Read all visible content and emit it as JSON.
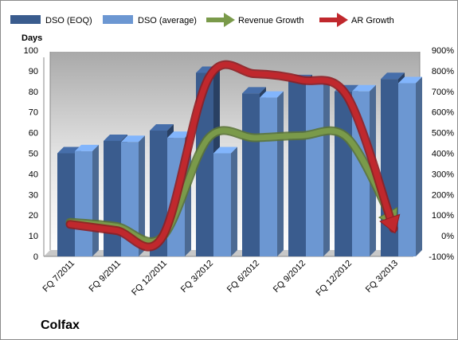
{
  "chart_data": {
    "type": "bar",
    "title": "Colfax",
    "ylabel": "Days",
    "categories": [
      "FQ 7/2011",
      "FQ 9/2011",
      "FQ 12/2011",
      "FQ 3/2012",
      "FQ 6/2012",
      "FQ 9/2012",
      "FQ 12/2012",
      "FQ 3/2013"
    ],
    "ylim": [
      0,
      100
    ],
    "y_ticks": [
      "0",
      "10",
      "20",
      "30",
      "40",
      "50",
      "60",
      "70",
      "80",
      "90",
      "100"
    ],
    "y2lim": [
      -100,
      900
    ],
    "y2_ticks": [
      "-100%",
      "0%",
      "100%",
      "200%",
      "300%",
      "400%",
      "500%",
      "600%",
      "700%",
      "800%",
      "900%"
    ],
    "series": [
      {
        "name": "DSO (EOQ)",
        "type": "bar",
        "color": "#3a5c8e",
        "values": [
          50,
          56,
          61,
          89,
          79,
          85,
          80,
          86
        ]
      },
      {
        "name": "DSO (average)",
        "type": "bar",
        "color": "#6c97d2",
        "values": [
          51,
          55.5,
          57.5,
          50,
          77,
          84,
          80,
          84
        ]
      },
      {
        "name": "Revenue Growth",
        "type": "line",
        "axis": "right",
        "color": "#7a9a4a",
        "values": [
          50,
          30,
          -20,
          460,
          460,
          470,
          460,
          50
        ]
      },
      {
        "name": "AR Growth",
        "type": "line",
        "axis": "right",
        "color": "#c0282d",
        "values": [
          40,
          10,
          -20,
          750,
          770,
          740,
          660,
          20
        ]
      }
    ],
    "legend_position": "top",
    "grid": false
  }
}
